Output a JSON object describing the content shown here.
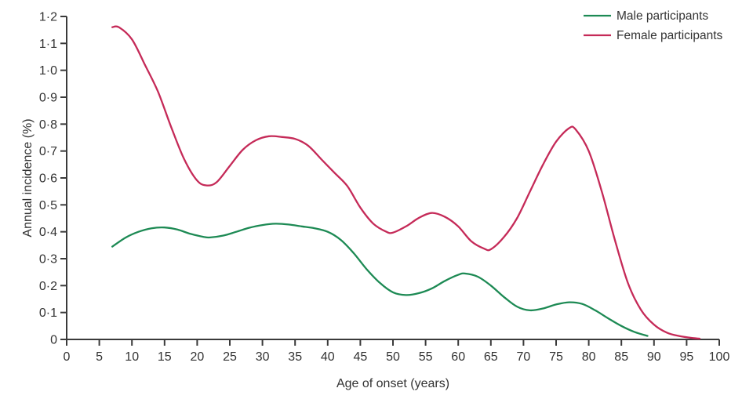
{
  "chart_data": {
    "type": "line",
    "title": "",
    "xlabel": "Age of onset (years)",
    "ylabel": "Annual incidence (%)",
    "xlim": [
      0,
      100
    ],
    "ylim": [
      0,
      1.2
    ],
    "grid": false,
    "legend_position": "top-right",
    "x_ticks": [
      0,
      5,
      10,
      15,
      20,
      25,
      30,
      35,
      40,
      45,
      50,
      55,
      60,
      65,
      70,
      75,
      80,
      85,
      90,
      95,
      100
    ],
    "y_ticks": [
      0,
      0.1,
      0.2,
      0.3,
      0.4,
      0.5,
      0.6,
      0.7,
      0.8,
      0.9,
      1.0,
      1.1,
      1.2
    ],
    "y_tick_labels": [
      "0",
      "0·1",
      "0·2",
      "0·3",
      "0·4",
      "0·5",
      "0·6",
      "0·7",
      "0·8",
      "0·9",
      "1·0",
      "1·1",
      "1·2"
    ],
    "axis_color": "#3a3a3a",
    "text_color": "#333333",
    "series": [
      {
        "name": "Male participants",
        "color": "#1d8a54",
        "x": [
          7,
          9,
          11,
          13,
          15,
          17,
          19,
          21,
          22,
          24,
          26,
          28,
          30,
          32,
          34,
          36,
          38,
          40,
          42,
          44,
          46,
          48,
          50,
          52,
          54,
          56,
          58,
          60,
          61,
          63,
          65,
          67,
          69,
          71,
          73,
          75,
          77,
          79,
          81,
          83,
          85,
          87,
          89
        ],
        "y": [
          0.345,
          0.378,
          0.4,
          0.413,
          0.416,
          0.408,
          0.392,
          0.381,
          0.379,
          0.386,
          0.4,
          0.415,
          0.425,
          0.43,
          0.427,
          0.42,
          0.413,
          0.4,
          0.37,
          0.32,
          0.26,
          0.21,
          0.175,
          0.165,
          0.172,
          0.19,
          0.218,
          0.24,
          0.245,
          0.233,
          0.2,
          0.158,
          0.122,
          0.108,
          0.115,
          0.13,
          0.138,
          0.132,
          0.108,
          0.078,
          0.05,
          0.028,
          0.013
        ]
      },
      {
        "name": "Female participants",
        "color": "#c52a58",
        "x": [
          7,
          8,
          10,
          12,
          14,
          16,
          18,
          20,
          21.5,
          23,
          25,
          27,
          29,
          31,
          33,
          35,
          37,
          39,
          41,
          43,
          45,
          47,
          49,
          50,
          52,
          54,
          56,
          58,
          60,
          62,
          64,
          65,
          67,
          69,
          71,
          73,
          75,
          77,
          78,
          80,
          82,
          84,
          86,
          88,
          90,
          92,
          94,
          96,
          97
        ],
        "y": [
          1.16,
          1.16,
          1.115,
          1.02,
          0.92,
          0.79,
          0.67,
          0.59,
          0.572,
          0.585,
          0.645,
          0.705,
          0.74,
          0.755,
          0.752,
          0.745,
          0.72,
          0.67,
          0.62,
          0.57,
          0.49,
          0.43,
          0.4,
          0.397,
          0.42,
          0.452,
          0.47,
          0.455,
          0.42,
          0.365,
          0.337,
          0.335,
          0.38,
          0.45,
          0.55,
          0.65,
          0.735,
          0.785,
          0.78,
          0.7,
          0.55,
          0.37,
          0.21,
          0.11,
          0.055,
          0.025,
          0.012,
          0.005,
          0.003
        ]
      }
    ]
  }
}
